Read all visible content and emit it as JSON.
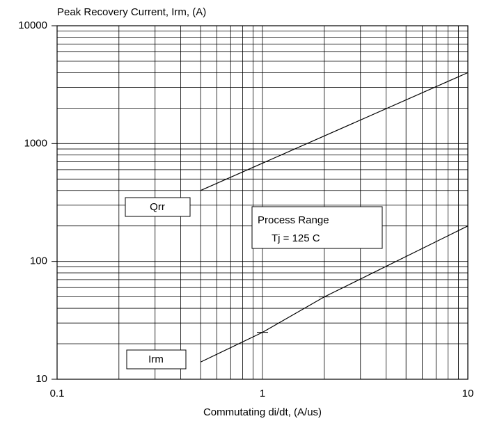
{
  "chart_data": {
    "type": "line",
    "title": "Peak Recovery Current, Irm, (A)",
    "x_label": "Commutating di/dt, (A/us)",
    "x_scale": "log",
    "y_scale": "log",
    "grid": true,
    "minor_grid": true,
    "xlim": [
      0.1,
      10
    ],
    "xticks": [
      0.1,
      1,
      10
    ],
    "ylim": [
      10,
      10000
    ],
    "yticks": [
      10,
      100,
      1000,
      10000
    ],
    "series": [
      {
        "name": "Qrr",
        "color": "#000000",
        "x": [
          0.5,
          10
        ],
        "values": [
          400,
          4000
        ]
      },
      {
        "name": "Irm",
        "color": "#000000",
        "x": [
          0.5,
          1,
          2,
          10
        ],
        "values": [
          14,
          25,
          50,
          200
        ]
      }
    ],
    "annotations": [
      "Process Range",
      "Tj = 125 C"
    ]
  }
}
